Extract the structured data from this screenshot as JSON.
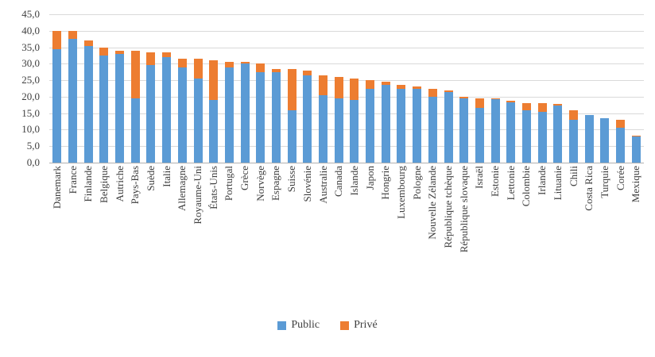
{
  "chart_data": {
    "type": "bar",
    "stacked": true,
    "title": "",
    "xlabel": "",
    "ylabel": "",
    "ylim": [
      0,
      45
    ],
    "grid": "horizontal",
    "legend_position": "bottom",
    "categories": [
      "Danemark",
      "France",
      "Finlande",
      "Belgique",
      "Autriche",
      "Pays-Bas",
      "Suède",
      "Italie",
      "Allemagne",
      "Royaume-Uni",
      "États-Unis",
      "Portugal",
      "Grèce",
      "Norvège",
      "Espagne",
      "Suisse",
      "Slovénie",
      "Australie",
      "Canada",
      "Islande",
      "Japon",
      "Hongrie",
      "Luxembourg",
      "Pologne",
      "Nouvelle Zélande",
      "République tchèque",
      "République slovaque",
      "Israël",
      "Estonie",
      "Lettonie",
      "Colombie",
      "Irlande",
      "Lituanie",
      "Chili",
      "Costa Rica",
      "Turquie",
      "Corée",
      "Mexique"
    ],
    "series": [
      {
        "name": "Public",
        "color": "#5B9BD5",
        "values": [
          34.5,
          37.5,
          35.5,
          32.5,
          33.0,
          19.5,
          29.5,
          32.0,
          29.0,
          25.5,
          19.0,
          29.0,
          30.0,
          27.5,
          27.5,
          16.0,
          26.5,
          20.5,
          19.5,
          19.0,
          22.5,
          23.5,
          22.5,
          22.5,
          20.0,
          21.5,
          19.5,
          16.5,
          19.2,
          18.3,
          16.0,
          15.5,
          17.3,
          13.0,
          14.4,
          13.4,
          10.5,
          7.9
        ]
      },
      {
        "name": "Privé",
        "color": "#ED7D31",
        "values": [
          5.5,
          2.5,
          1.5,
          2.5,
          1.0,
          14.5,
          4.0,
          1.5,
          2.5,
          6.0,
          12.0,
          1.5,
          0.5,
          2.5,
          1.0,
          12.5,
          1.5,
          6.0,
          6.5,
          6.5,
          2.5,
          1.0,
          1.0,
          0.5,
          2.5,
          0.5,
          0.5,
          3.0,
          0.3,
          0.5,
          2.0,
          2.5,
          0.5,
          3.0,
          0.1,
          0.1,
          2.5,
          0.2
        ]
      }
    ],
    "y_axis": {
      "ticks": [
        0,
        5,
        10,
        15,
        20,
        25,
        30,
        35,
        40,
        45
      ],
      "labels": [
        "0,0",
        "5,0",
        "10,0",
        "15,0",
        "20,0",
        "25,0",
        "30,0",
        "35,0",
        "40,0",
        "45,0"
      ]
    }
  },
  "legend": {
    "items": [
      "Public",
      "Privé"
    ]
  }
}
